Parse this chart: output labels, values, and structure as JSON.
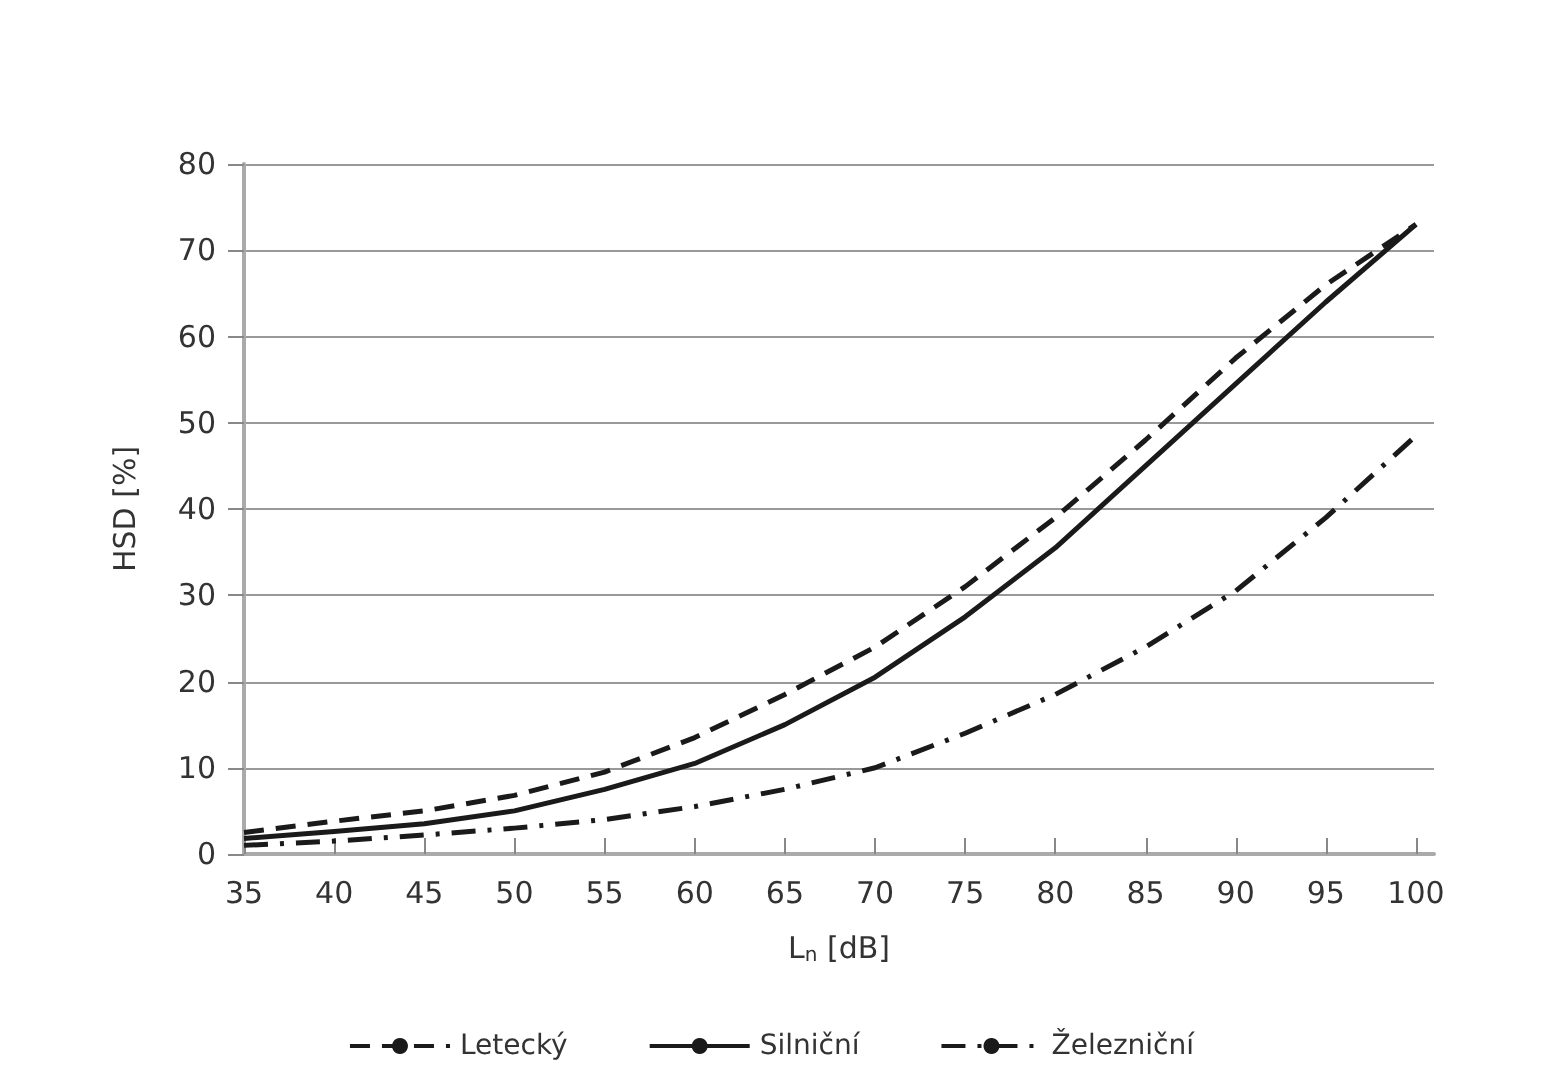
{
  "chart_data": {
    "type": "line",
    "xlabel": "L$_{n}$ [dB]",
    "ylabel": "HSD [%]",
    "x": [
      35,
      40,
      45,
      50,
      55,
      60,
      65,
      70,
      75,
      80,
      85,
      90,
      95,
      100
    ],
    "xlim": [
      35,
      101
    ],
    "xticks": [
      35,
      40,
      45,
      50,
      55,
      60,
      65,
      70,
      75,
      80,
      85,
      90,
      95,
      100
    ],
    "ylim": [
      0,
      80
    ],
    "yticks": [
      0,
      10,
      20,
      30,
      40,
      50,
      60,
      70,
      80
    ],
    "grid": "y",
    "legend": "bottom",
    "marker": "none",
    "series": [
      {
        "name": "Letecký",
        "color": "#1a1a1a",
        "line_style": "dashed",
        "values": [
          2.5,
          3.8,
          5,
          6.8,
          9.5,
          13.5,
          18.5,
          24,
          31,
          39,
          48,
          57.5,
          66,
          73
        ]
      },
      {
        "name": "Silniční",
        "color": "#1a1a1a",
        "line_style": "solid",
        "values": [
          1.8,
          2.6,
          3.5,
          5,
          7.5,
          10.5,
          15,
          20.5,
          27.5,
          35.5,
          45,
          54.5,
          64,
          73
        ]
      },
      {
        "name": "Železniční",
        "color": "#1a1a1a",
        "line_style": "dashdot",
        "values": [
          1,
          1.5,
          2.2,
          3,
          4,
          5.5,
          7.5,
          10,
          14,
          18.5,
          24,
          30.5,
          39,
          48.5
        ]
      }
    ]
  }
}
